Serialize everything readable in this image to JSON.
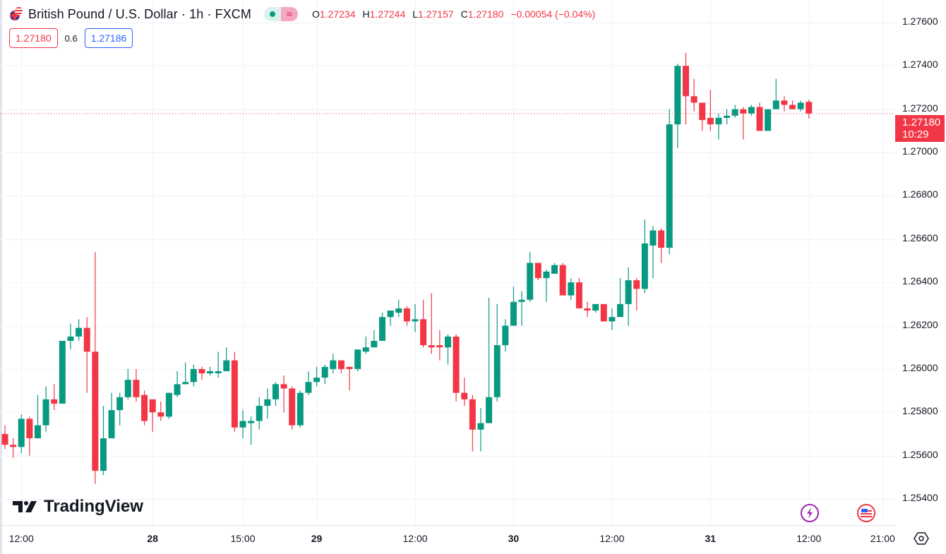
{
  "header": {
    "symbol_title": "British Pound / U.S. Dollar · 1h · FXCM",
    "ohlc": [
      {
        "key": "O",
        "value": "1.27234"
      },
      {
        "key": "H",
        "value": "1.27244"
      },
      {
        "key": "L",
        "value": "1.27157"
      },
      {
        "key": "C",
        "value": "1.27180"
      }
    ],
    "change": "−0.00054 (−0.04%)",
    "wave_icon": "≈"
  },
  "quotes": {
    "sell": "1.27180",
    "spread": "0.6",
    "buy": "1.27186"
  },
  "current_price": {
    "price": "1.27180",
    "countdown": "10:29"
  },
  "branding": {
    "logo_text": "TradingView"
  },
  "colors": {
    "up": "#089981",
    "down": "#f23645",
    "grid": "#f0f3fa"
  },
  "chart_data": {
    "type": "candlestick",
    "title": "British Pound / U.S. Dollar · 1h · FXCM",
    "ylim": [
      1.2535,
      1.277
    ],
    "y_ticks": [
      "1.27600",
      "1.27400",
      "1.27200",
      "1.27000",
      "1.26800",
      "1.26600",
      "1.26400",
      "1.26200",
      "1.26000",
      "1.25800",
      "1.25600",
      "1.25400"
    ],
    "x_ticks": [
      {
        "label": "12:00",
        "bar": 2,
        "day": false
      },
      {
        "label": "28",
        "bar": 18,
        "day": true
      },
      {
        "label": "15:00",
        "bar": 29,
        "day": false
      },
      {
        "label": "29",
        "bar": 38,
        "day": true
      },
      {
        "label": "12:00",
        "bar": 50,
        "day": false
      },
      {
        "label": "30",
        "bar": 62,
        "day": true
      },
      {
        "label": "12:00",
        "bar": 74,
        "day": false
      },
      {
        "label": "31",
        "bar": 86,
        "day": true
      },
      {
        "label": "12:00",
        "bar": 98,
        "day": false
      },
      {
        "label": "21:00",
        "bar": 107,
        "day": false
      }
    ],
    "last_price": 1.2718,
    "candles_ohlc": [
      [
        1.257,
        1.2574,
        1.2563,
        1.2565
      ],
      [
        1.2565,
        1.2568,
        1.2559,
        1.2564
      ],
      [
        1.2564,
        1.2579,
        1.2561,
        1.2577
      ],
      [
        1.2577,
        1.2578,
        1.256,
        1.2568
      ],
      [
        1.2568,
        1.2588,
        1.2568,
        1.2574
      ],
      [
        1.2574,
        1.2592,
        1.2571,
        1.2586
      ],
      [
        1.2586,
        1.2593,
        1.2581,
        1.2584
      ],
      [
        1.2584,
        1.2613,
        1.2584,
        1.2613
      ],
      [
        1.2613,
        1.2621,
        1.2609,
        1.2615
      ],
      [
        1.2615,
        1.2623,
        1.2613,
        1.2619
      ],
      [
        1.2619,
        1.2624,
        1.2589,
        1.2608
      ],
      [
        1.2608,
        1.2654,
        1.2547,
        1.2553
      ],
      [
        1.2553,
        1.2583,
        1.2551,
        1.2568
      ],
      [
        1.2568,
        1.2589,
        1.2568,
        1.2581
      ],
      [
        1.2581,
        1.2589,
        1.2574,
        1.2587
      ],
      [
        1.2587,
        1.26,
        1.2586,
        1.2595
      ],
      [
        1.2595,
        1.26,
        1.2585,
        1.2587
      ],
      [
        1.2588,
        1.259,
        1.2574,
        1.2576
      ],
      [
        1.2586,
        1.2586,
        1.2571,
        1.258
      ],
      [
        1.258,
        1.2585,
        1.2576,
        1.2578
      ],
      [
        1.2578,
        1.2589,
        1.2577,
        1.2589
      ],
      [
        1.2588,
        1.2599,
        1.2587,
        1.2593
      ],
      [
        1.2593,
        1.2603,
        1.2593,
        1.2594
      ],
      [
        1.2594,
        1.2602,
        1.2592,
        1.26
      ],
      [
        1.26,
        1.2601,
        1.2595,
        1.2598
      ],
      [
        1.2598,
        1.2601,
        1.2597,
        1.2599
      ],
      [
        1.2598,
        1.2608,
        1.2596,
        1.2599
      ],
      [
        1.2599,
        1.261,
        1.2599,
        1.2604
      ],
      [
        1.2604,
        1.2608,
        1.2571,
        1.2573
      ],
      [
        1.2573,
        1.2581,
        1.2568,
        1.2576
      ],
      [
        1.2575,
        1.2578,
        1.2565,
        1.2576
      ],
      [
        1.2576,
        1.2587,
        1.2572,
        1.2583
      ],
      [
        1.2583,
        1.2591,
        1.2577,
        1.2586
      ],
      [
        1.2586,
        1.2594,
        1.2583,
        1.2593
      ],
      [
        1.2593,
        1.2597,
        1.258,
        1.2591
      ],
      [
        1.2591,
        1.2592,
        1.2572,
        1.2574
      ],
      [
        1.2574,
        1.259,
        1.2573,
        1.2589
      ],
      [
        1.2589,
        1.2599,
        1.2588,
        1.2594
      ],
      [
        1.2594,
        1.2601,
        1.2592,
        1.2596
      ],
      [
        1.2596,
        1.2602,
        1.2593,
        1.2601
      ],
      [
        1.26,
        1.2607,
        1.2598,
        1.2604
      ],
      [
        1.2604,
        1.2604,
        1.2598,
        1.26
      ],
      [
        1.2601,
        1.2601,
        1.259,
        1.26
      ],
      [
        1.26,
        1.2609,
        1.2599,
        1.2609
      ],
      [
        1.2608,
        1.2615,
        1.2607,
        1.261
      ],
      [
        1.261,
        1.2618,
        1.261,
        1.2613
      ],
      [
        1.2613,
        1.2626,
        1.2613,
        1.2624
      ],
      [
        1.2624,
        1.2627,
        1.262,
        1.2627
      ],
      [
        1.2626,
        1.2632,
        1.2624,
        1.2628
      ],
      [
        1.2628,
        1.2629,
        1.262,
        1.2622
      ],
      [
        1.2622,
        1.263,
        1.2617,
        1.2623
      ],
      [
        1.2623,
        1.2632,
        1.261,
        1.2611
      ],
      [
        1.2611,
        1.2635,
        1.2607,
        1.261
      ],
      [
        1.2611,
        1.2618,
        1.2604,
        1.261
      ],
      [
        1.261,
        1.2616,
        1.2602,
        1.2615
      ],
      [
        1.2615,
        1.2616,
        1.2585,
        1.2589
      ],
      [
        1.2589,
        1.2596,
        1.2583,
        1.2586
      ],
      [
        1.2586,
        1.2588,
        1.2562,
        1.2572
      ],
      [
        1.2572,
        1.2582,
        1.2562,
        1.2575
      ],
      [
        1.2575,
        1.2633,
        1.2575,
        1.2587
      ],
      [
        1.2587,
        1.263,
        1.2585,
        1.2611
      ],
      [
        1.2611,
        1.2623,
        1.2608,
        1.262
      ],
      [
        1.262,
        1.2638,
        1.262,
        1.2631
      ],
      [
        1.2631,
        1.2636,
        1.262,
        1.2632
      ],
      [
        1.2632,
        1.2654,
        1.2631,
        1.2649
      ],
      [
        1.2649,
        1.2649,
        1.2641,
        1.2642
      ],
      [
        1.2642,
        1.2646,
        1.2631,
        1.2645
      ],
      [
        1.2644,
        1.2649,
        1.2644,
        1.2648
      ],
      [
        1.2648,
        1.2649,
        1.2634,
        1.2634
      ],
      [
        1.2634,
        1.2642,
        1.2632,
        1.264
      ],
      [
        1.264,
        1.2642,
        1.2628,
        1.2628
      ],
      [
        1.2628,
        1.2631,
        1.2624,
        1.2627
      ],
      [
        1.2627,
        1.263,
        1.2626,
        1.263
      ],
      [
        1.263,
        1.263,
        1.2622,
        1.2622
      ],
      [
        1.2622,
        1.2628,
        1.2618,
        1.2624
      ],
      [
        1.2624,
        1.2642,
        1.2624,
        1.263
      ],
      [
        1.263,
        1.2647,
        1.262,
        1.2641
      ],
      [
        1.2641,
        1.2642,
        1.2627,
        1.2637
      ],
      [
        1.2637,
        1.2669,
        1.2635,
        1.2658
      ],
      [
        1.2657,
        1.2666,
        1.2642,
        1.2664
      ],
      [
        1.2664,
        1.2665,
        1.2649,
        1.2656
      ],
      [
        1.2656,
        1.272,
        1.2653,
        1.2713
      ],
      [
        1.2713,
        1.2741,
        1.2702,
        1.274
      ],
      [
        1.274,
        1.2746,
        1.2713,
        1.2726
      ],
      [
        1.2726,
        1.2734,
        1.2719,
        1.2723
      ],
      [
        1.2723,
        1.2723,
        1.271,
        1.2715
      ],
      [
        1.2716,
        1.2729,
        1.271,
        1.2713
      ],
      [
        1.2713,
        1.2718,
        1.2706,
        1.2716
      ],
      [
        1.2716,
        1.272,
        1.2713,
        1.2717
      ],
      [
        1.2717,
        1.2722,
        1.2716,
        1.272
      ],
      [
        1.272,
        1.2721,
        1.2706,
        1.2718
      ],
      [
        1.2718,
        1.2722,
        1.2717,
        1.2721
      ],
      [
        1.2721,
        1.2723,
        1.271,
        1.271
      ],
      [
        1.271,
        1.272,
        1.271,
        1.272
      ],
      [
        1.272,
        1.2734,
        1.272,
        1.2724
      ],
      [
        1.2724,
        1.2726,
        1.2719,
        1.2722
      ],
      [
        1.2722,
        1.2724,
        1.272,
        1.272
      ],
      [
        1.272,
        1.2724,
        1.2719,
        1.2723
      ],
      [
        1.27234,
        1.27244,
        1.27157,
        1.2718
      ]
    ]
  }
}
